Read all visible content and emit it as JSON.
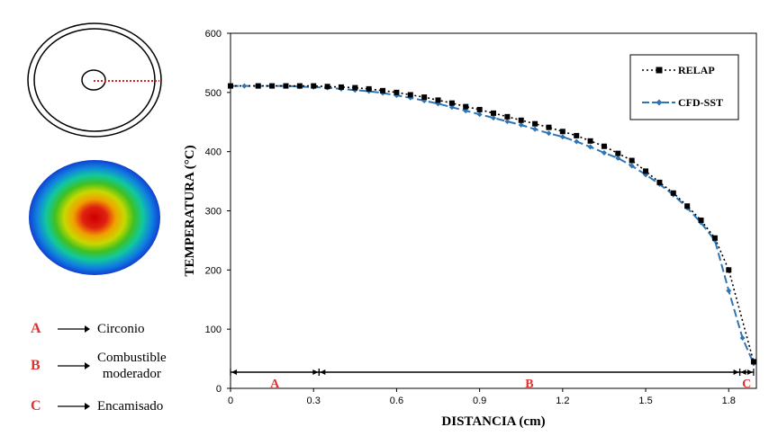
{
  "legend_items": [
    {
      "letter": "A",
      "text": "Circonio"
    },
    {
      "letter": "B",
      "text": "Combustible\nmoderador"
    },
    {
      "letter": "C",
      "text": "Encamisado"
    }
  ],
  "chart_data": {
    "type": "line",
    "xlabel": "DISTANCIA (cm)",
    "ylabel": "TEMPERATURA (°C)",
    "xlim": [
      0,
      1.9
    ],
    "ylim": [
      0,
      600
    ],
    "xticks": [
      0,
      0.3,
      0.6,
      0.9,
      1.2,
      1.5,
      1.8
    ],
    "xtick_labels": [
      "0",
      "0.3",
      "0.6",
      "0.9",
      "1.2",
      "1.5",
      "1.8"
    ],
    "yticks": [
      0,
      100,
      200,
      300,
      400,
      500,
      600
    ],
    "ytick_labels": [
      "0",
      "100",
      "200",
      "300",
      "400",
      "500",
      "600"
    ],
    "grid": false,
    "legend_position": "top-right",
    "regions": [
      {
        "label": "A",
        "from": 0,
        "to": 0.32
      },
      {
        "label": "B",
        "from": 0.32,
        "to": 1.84
      },
      {
        "label": "C",
        "from": 1.84,
        "to": 1.89
      }
    ],
    "series": [
      {
        "name": "RELAP",
        "color": "#000000",
        "marker": "square",
        "x": [
          0,
          0.1,
          0.15,
          0.2,
          0.25,
          0.3,
          0.35,
          0.4,
          0.45,
          0.5,
          0.55,
          0.6,
          0.65,
          0.7,
          0.75,
          0.8,
          0.85,
          0.9,
          0.95,
          1.0,
          1.05,
          1.1,
          1.15,
          1.2,
          1.25,
          1.3,
          1.35,
          1.4,
          1.45,
          1.5,
          1.55,
          1.6,
          1.65,
          1.7,
          1.75,
          1.8,
          1.89
        ],
        "y": [
          511,
          511,
          511,
          511,
          511,
          511,
          510,
          509,
          508,
          506,
          503,
          500,
          496,
          492,
          487,
          482,
          476,
          471,
          465,
          459,
          453,
          447,
          441,
          434,
          427,
          418,
          409,
          397,
          385,
          367,
          348,
          330,
          308,
          284,
          254,
          200,
          45
        ]
      },
      {
        "name": "CFD-SST",
        "color": "#2e75b6",
        "marker": "diamond",
        "x": [
          0,
          0.05,
          0.1,
          0.15,
          0.2,
          0.25,
          0.3,
          0.35,
          0.4,
          0.45,
          0.5,
          0.55,
          0.6,
          0.65,
          0.7,
          0.75,
          0.8,
          0.85,
          0.9,
          0.95,
          1.0,
          1.05,
          1.1,
          1.15,
          1.2,
          1.25,
          1.3,
          1.35,
          1.4,
          1.45,
          1.5,
          1.55,
          1.6,
          1.65,
          1.7,
          1.75,
          1.8,
          1.85,
          1.89
        ],
        "y": [
          511,
          511,
          511,
          511,
          511,
          510,
          509,
          508,
          506,
          504,
          502,
          499,
          495,
          491,
          486,
          481,
          475,
          469,
          463,
          457,
          451,
          445,
          438,
          431,
          425,
          417,
          408,
          398,
          389,
          376,
          361,
          345,
          327,
          305,
          280,
          250,
          165,
          85,
          42
        ]
      }
    ]
  }
}
